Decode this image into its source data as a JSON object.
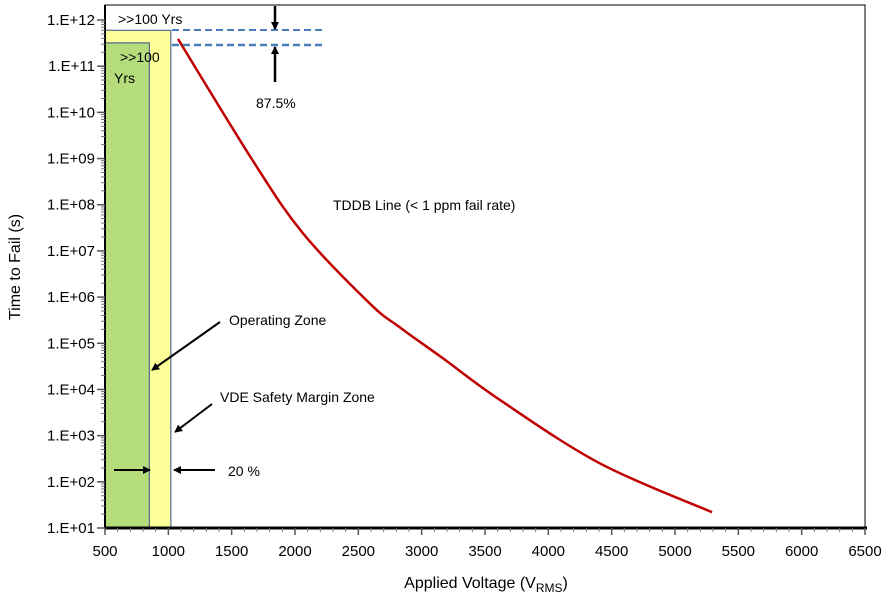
{
  "chart_data": {
    "type": "line",
    "title": "",
    "xlabel": "Applied Voltage (V",
    "xlabel_sub": "RMS",
    "xlabel_end": ")",
    "ylabel": "Time to Fail (s)",
    "xlim": [
      500,
      6500
    ],
    "ylim": [
      10,
      1000000000000.0
    ],
    "yscale": "log",
    "grid": false,
    "x_ticks": [
      500,
      1000,
      1500,
      2000,
      2500,
      3000,
      3500,
      4000,
      4500,
      5000,
      5500,
      6000,
      6500
    ],
    "y_ticks": [
      "1.E+01",
      "1.E+02",
      "1.E+03",
      "1.E+04",
      "1.E+05",
      "1.E+06",
      "1.E+07",
      "1.E+08",
      "1.E+09",
      "1.E+10",
      "1.E+11",
      "1.E+12"
    ],
    "series": [
      {
        "name": "TDDB Line (< 1 ppm fail rate)",
        "color": "#c00000",
        "x": [
          1076,
          1668,
          2063,
          2592,
          2829,
          3169,
          3619,
          4408,
          5292
        ],
        "y": [
          390000000000.0,
          890000000.0,
          24000000.0,
          720000.0,
          220000.0,
          47000.0,
          5900.0,
          250.0,
          22
        ]
      }
    ],
    "zones": [
      {
        "name": "Operating Zone",
        "x": [
          500,
          850
        ],
        "y_top": 320000000000.0,
        "color": "#b6dd7c",
        "label_line1": ">>100",
        "label_line2": "Yrs"
      },
      {
        "name": "VDE Safety Margin Zone",
        "x": [
          500,
          1020
        ],
        "y_top": 600000000000.0,
        "color": "#ffff99",
        "label": ">>100 Yrs"
      }
    ],
    "reference_lines": [
      {
        "y": 600000000000.0,
        "style": "dashed",
        "color": "#4a7ebb"
      },
      {
        "y": 320000000000.0,
        "style": "dashed",
        "color": "#4a7ebb"
      }
    ],
    "annotations": {
      "tddb": "TDDB Line (< 1 ppm fail rate)",
      "operating": "Operating  Zone",
      "vde": "VDE Safety Margin Zone",
      "margin": "20 %",
      "lifetime_margin": "87.5%"
    }
  }
}
